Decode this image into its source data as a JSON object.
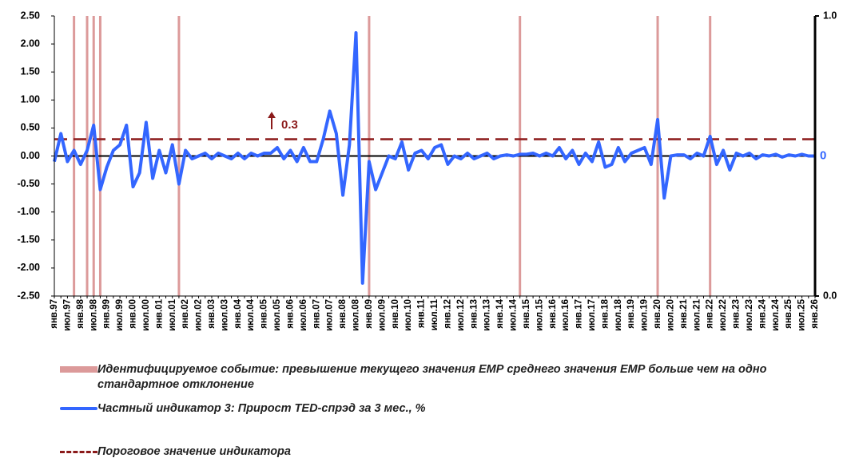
{
  "chart_data": {
    "type": "line",
    "categories": [
      "янв.97",
      null,
      "июл.97",
      null,
      "янв.98",
      null,
      "июл.98",
      null,
      "янв.99",
      null,
      "июл.99",
      null,
      "янв.00",
      null,
      "июл.00",
      null,
      "янв.01",
      null,
      "июл.01",
      null,
      "янв.02",
      null,
      "июл.02",
      null,
      "янв.03",
      null,
      "июл.03",
      null,
      "янв.04",
      null,
      "июл.04",
      null,
      "янв.05",
      null,
      "июл.05",
      null,
      "янв.06",
      null,
      "июл.06",
      null,
      "янв.07",
      null,
      "июл.07",
      null,
      "янв.08",
      null,
      "июл.08",
      null,
      "янв.09",
      null,
      "июл.09",
      null,
      "янв.10",
      null,
      "июл.10",
      null,
      "янв.11",
      null,
      "июл.11",
      null,
      "янв.12",
      null,
      "июл.12",
      null,
      "янв.13",
      null,
      "июл.13",
      null,
      "янв.14",
      null,
      "июл.14",
      null,
      "янв.15",
      null,
      "июл.15",
      null,
      "янв.16",
      null,
      "июл.16",
      null,
      "янв.17",
      null,
      "июл.17",
      null,
      "янв.18",
      null,
      "июл.18",
      null,
      "янв.19",
      null,
      "июл.19",
      null,
      "янв.20",
      null,
      "июл.20",
      null,
      "янв.21",
      null,
      "июл.21",
      null,
      "янв.22",
      null,
      "июл.22",
      null,
      "янв.23",
      null,
      "июл.23",
      null,
      "янв.24",
      null,
      "июл.24",
      null,
      "янв.25",
      null,
      "июл.25",
      null,
      "янв.26"
    ],
    "series": [
      {
        "name": "Идентифицируемое событие: превышение текущего значения ЕМР среднего значения ЕМР больше чем на одно стандартное отклонение",
        "type": "event",
        "axis": "y2",
        "color": "#dc9a9a",
        "values": [
          null,
          null,
          null,
          1,
          null,
          1,
          1,
          1,
          null,
          null,
          null,
          null,
          null,
          null,
          null,
          null,
          null,
          null,
          null,
          1,
          null,
          null,
          null,
          null,
          null,
          null,
          null,
          null,
          null,
          null,
          null,
          null,
          null,
          null,
          null,
          null,
          null,
          null,
          null,
          null,
          null,
          null,
          null,
          null,
          null,
          null,
          null,
          null,
          1,
          null,
          null,
          null,
          null,
          null,
          null,
          null,
          null,
          null,
          null,
          null,
          null,
          null,
          null,
          null,
          null,
          null,
          null,
          null,
          null,
          null,
          null,
          1,
          null,
          null,
          null,
          null,
          null,
          null,
          null,
          null,
          null,
          null,
          null,
          null,
          null,
          null,
          null,
          null,
          null,
          null,
          null,
          null,
          1,
          null,
          null,
          null,
          null,
          null,
          null,
          null,
          1,
          null,
          null,
          null,
          null,
          null,
          null,
          null,
          null,
          null,
          null,
          null,
          null,
          null,
          null,
          null,
          null
        ]
      },
      {
        "name": "Частный индикатор 3: Прирост TED-спрэд за 3 мес., %",
        "type": "line",
        "color": "#3366ff",
        "values": [
          -0.1,
          0.4,
          -0.1,
          0.1,
          -0.15,
          0.1,
          0.55,
          -0.6,
          -0.2,
          0.1,
          0.2,
          0.55,
          -0.55,
          -0.3,
          0.6,
          -0.4,
          0.1,
          -0.3,
          0.2,
          -0.5,
          0.1,
          -0.05,
          0.0,
          0.05,
          -0.05,
          0.05,
          0.0,
          -0.05,
          0.05,
          -0.05,
          0.05,
          0.0,
          0.05,
          0.05,
          0.15,
          -0.05,
          0.1,
          -0.1,
          0.15,
          -0.1,
          -0.1,
          0.3,
          0.8,
          0.4,
          -0.7,
          0.2,
          2.2,
          -2.27,
          -0.1,
          -0.6,
          -0.3,
          0.0,
          -0.05,
          0.25,
          -0.25,
          0.05,
          0.1,
          -0.05,
          0.15,
          0.2,
          -0.15,
          0.0,
          -0.05,
          0.05,
          -0.05,
          0.0,
          0.05,
          -0.05,
          0.0,
          0.02,
          0.0,
          0.03,
          0.03,
          0.05,
          0.0,
          0.05,
          0.0,
          0.15,
          -0.05,
          0.1,
          -0.15,
          0.05,
          -0.1,
          0.25,
          -0.2,
          -0.15,
          0.15,
          -0.1,
          0.05,
          0.1,
          0.15,
          -0.15,
          0.65,
          -0.75,
          0.0,
          0.02,
          0.02,
          -0.05,
          0.05,
          0.0,
          0.35,
          -0.15,
          0.1,
          -0.25,
          0.05,
          0.0,
          0.05,
          -0.05,
          0.02,
          0.0,
          0.03,
          -0.02,
          0.02,
          0.0,
          0.03,
          0.0,
          0.0
        ]
      }
    ],
    "threshold": {
      "name": "Пороговое значение индикатора",
      "value": 0.3,
      "color": "#8b1a1a"
    },
    "annotation": "0",
    "ylim": [
      -2.5,
      2.5
    ],
    "yticks": [
      {
        "value": -2.5,
        "label": "-2.50"
      },
      {
        "value": -2,
        "label": "-2.00"
      },
      {
        "value": -1.5,
        "label": "-1.50"
      },
      {
        "value": -1,
        "label": "-1.00"
      },
      {
        "value": -0.5,
        "label": "-0.50"
      },
      {
        "value": 0,
        "label": "0.00"
      },
      {
        "value": 0.5,
        "label": "0.50"
      },
      {
        "value": 1,
        "label": "1.00"
      },
      {
        "value": 1.5,
        "label": "1.50"
      },
      {
        "value": 2,
        "label": "2.00"
      },
      {
        "value": 2.5,
        "label": "2.50"
      }
    ],
    "y2lim": [
      0,
      1
    ],
    "y2ticks": [
      {
        "value": 0,
        "label": "0.0"
      },
      {
        "value": 1,
        "label": "1.0"
      }
    ],
    "grid": false
  }
}
